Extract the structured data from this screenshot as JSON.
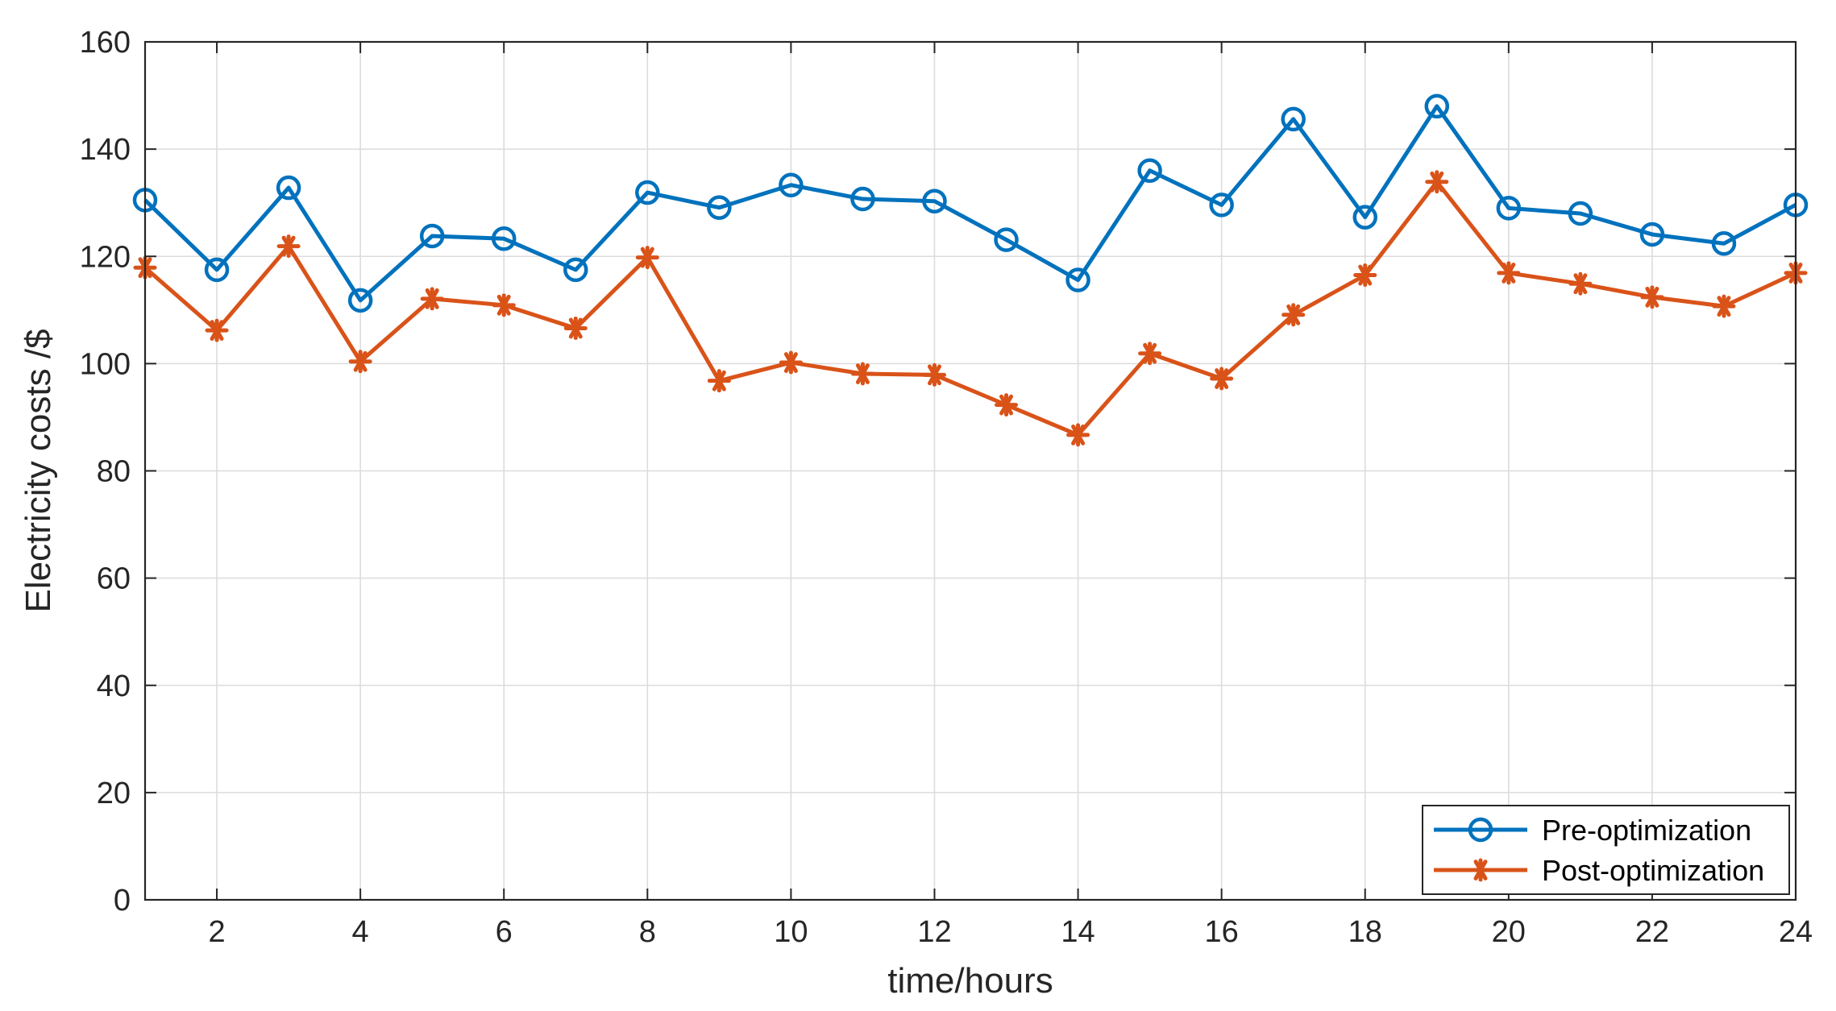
{
  "chart_data": {
    "type": "line",
    "xlabel": "time/hours",
    "ylabel": "Electricity costs /$",
    "xlim": [
      1,
      24
    ],
    "ylim": [
      0,
      160
    ],
    "x_ticks": [
      2,
      4,
      6,
      8,
      10,
      12,
      14,
      16,
      18,
      20,
      22,
      24
    ],
    "y_ticks": [
      0,
      20,
      40,
      60,
      80,
      100,
      120,
      140,
      160
    ],
    "grid": true,
    "legend_position": "bottom-right",
    "x": [
      1,
      2,
      3,
      4,
      5,
      6,
      7,
      8,
      9,
      10,
      11,
      12,
      13,
      14,
      15,
      16,
      17,
      18,
      19,
      20,
      21,
      22,
      23,
      24
    ],
    "series": [
      {
        "name": "Pre-optimization",
        "color": "#0072BD",
        "marker": "circle",
        "values": [
          130.5,
          117.5,
          132.8,
          111.8,
          123.8,
          123.3,
          117.5,
          131.9,
          129.1,
          133.3,
          130.7,
          130.3,
          123.1,
          115.6,
          136.0,
          129.6,
          145.6,
          127.3,
          148.0,
          129.0,
          128.0,
          124.1,
          122.4,
          129.6
        ]
      },
      {
        "name": "Post-optimization",
        "color": "#D95319",
        "marker": "asterisk",
        "values": [
          117.9,
          106.2,
          121.9,
          100.4,
          112.1,
          110.9,
          106.6,
          119.8,
          96.8,
          100.2,
          98.1,
          97.9,
          92.3,
          86.7,
          101.9,
          97.2,
          109.1,
          116.5,
          133.9,
          116.9,
          114.9,
          112.4,
          110.7,
          116.9
        ]
      }
    ]
  }
}
